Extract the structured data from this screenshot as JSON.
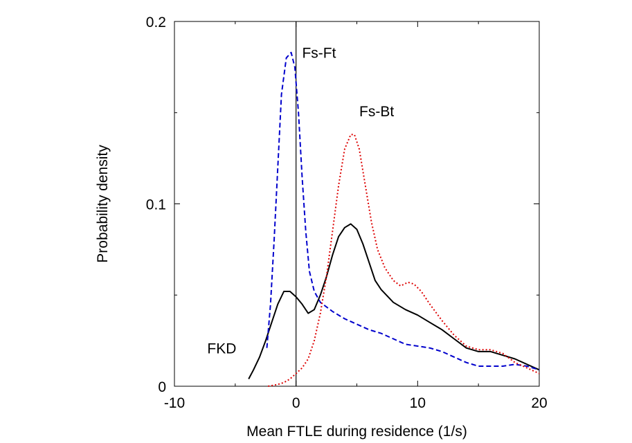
{
  "chart_data": {
    "type": "line",
    "title": "",
    "xlabel": "Mean FTLE during residence (1/s)",
    "ylabel": "Probability density",
    "xlim": [
      -10,
      20
    ],
    "ylim": [
      0,
      0.2
    ],
    "x_ticks": [
      -10,
      0,
      10,
      20
    ],
    "x_tick_labels": [
      "-10",
      "0",
      "10",
      "20"
    ],
    "y_ticks": [
      0,
      0.1,
      0.2
    ],
    "y_tick_labels": [
      "0",
      "0.1",
      "0.2"
    ],
    "minor_y_ticks": [
      0.05,
      0.15
    ],
    "minor_x_ticks": [
      -5,
      5,
      15
    ],
    "vertical_line_x": 0,
    "grid": false,
    "legend": "none",
    "series": [
      {
        "name": "FKD",
        "color": "#000000",
        "dash": "solid",
        "points": [
          [
            -3.9,
            0.004
          ],
          [
            -3.5,
            0.009
          ],
          [
            -3.0,
            0.016
          ],
          [
            -2.5,
            0.025
          ],
          [
            -2.0,
            0.035
          ],
          [
            -1.5,
            0.045
          ],
          [
            -1.0,
            0.052
          ],
          [
            -0.5,
            0.052
          ],
          [
            0.0,
            0.049
          ],
          [
            0.5,
            0.045
          ],
          [
            1.0,
            0.04
          ],
          [
            1.5,
            0.042
          ],
          [
            2.0,
            0.05
          ],
          [
            2.5,
            0.06
          ],
          [
            3.0,
            0.072
          ],
          [
            3.5,
            0.082
          ],
          [
            4.0,
            0.087
          ],
          [
            4.5,
            0.089
          ],
          [
            5.0,
            0.086
          ],
          [
            5.5,
            0.078
          ],
          [
            6.0,
            0.068
          ],
          [
            6.5,
            0.058
          ],
          [
            7.0,
            0.053
          ],
          [
            8.0,
            0.046
          ],
          [
            9.0,
            0.042
          ],
          [
            10.0,
            0.039
          ],
          [
            11.0,
            0.035
          ],
          [
            12.0,
            0.031
          ],
          [
            13.0,
            0.026
          ],
          [
            14.0,
            0.021
          ],
          [
            15.0,
            0.019
          ],
          [
            16.0,
            0.019
          ],
          [
            17.0,
            0.017
          ],
          [
            18.0,
            0.015
          ],
          [
            19.0,
            0.012
          ],
          [
            20.0,
            0.009
          ]
        ]
      },
      {
        "name": "Fs-Ft",
        "color": "#0000cc",
        "dash": "dashed",
        "points": [
          [
            -2.4,
            0.021
          ],
          [
            -2.1,
            0.045
          ],
          [
            -1.8,
            0.08
          ],
          [
            -1.5,
            0.12
          ],
          [
            -1.2,
            0.16
          ],
          [
            -0.8,
            0.18
          ],
          [
            -0.4,
            0.183
          ],
          [
            -0.1,
            0.175
          ],
          [
            0.2,
            0.15
          ],
          [
            0.5,
            0.115
          ],
          [
            0.8,
            0.085
          ],
          [
            1.1,
            0.063
          ],
          [
            1.5,
            0.052
          ],
          [
            2.0,
            0.046
          ],
          [
            3.0,
            0.041
          ],
          [
            4.0,
            0.037
          ],
          [
            5.0,
            0.034
          ],
          [
            6.0,
            0.031
          ],
          [
            7.0,
            0.029
          ],
          [
            8.0,
            0.026
          ],
          [
            9.0,
            0.023
          ],
          [
            10.0,
            0.022
          ],
          [
            11.0,
            0.021
          ],
          [
            12.0,
            0.019
          ],
          [
            13.0,
            0.016
          ],
          [
            14.0,
            0.013
          ],
          [
            15.0,
            0.011
          ],
          [
            16.0,
            0.011
          ],
          [
            17.0,
            0.011
          ],
          [
            18.0,
            0.012
          ],
          [
            19.0,
            0.011
          ],
          [
            20.0,
            0.009
          ]
        ]
      },
      {
        "name": "Fs-Bt",
        "color": "#dd0000",
        "dash": "dotted",
        "points": [
          [
            -2.3,
            0.0
          ],
          [
            -1.5,
            0.001
          ],
          [
            -1.0,
            0.002
          ],
          [
            -0.5,
            0.004
          ],
          [
            0.0,
            0.007
          ],
          [
            0.5,
            0.01
          ],
          [
            1.0,
            0.015
          ],
          [
            1.5,
            0.025
          ],
          [
            2.0,
            0.04
          ],
          [
            2.5,
            0.06
          ],
          [
            3.0,
            0.085
          ],
          [
            3.5,
            0.11
          ],
          [
            4.0,
            0.13
          ],
          [
            4.5,
            0.138
          ],
          [
            4.8,
            0.138
          ],
          [
            5.2,
            0.13
          ],
          [
            5.7,
            0.11
          ],
          [
            6.2,
            0.09
          ],
          [
            6.7,
            0.075
          ],
          [
            7.3,
            0.065
          ],
          [
            8.0,
            0.058
          ],
          [
            8.6,
            0.055
          ],
          [
            9.2,
            0.057
          ],
          [
            9.7,
            0.056
          ],
          [
            10.3,
            0.052
          ],
          [
            11.0,
            0.045
          ],
          [
            12.0,
            0.036
          ],
          [
            13.0,
            0.028
          ],
          [
            14.0,
            0.022
          ],
          [
            15.0,
            0.02
          ],
          [
            16.0,
            0.02
          ],
          [
            17.0,
            0.018
          ],
          [
            18.0,
            0.013
          ],
          [
            19.0,
            0.01
          ],
          [
            20.0,
            0.007
          ]
        ]
      }
    ],
    "annotations": [
      {
        "text": "Fs-Ft",
        "x": 0.5,
        "y": 0.18
      },
      {
        "text": "Fs-Bt",
        "x": 5.2,
        "y": 0.148
      },
      {
        "text": "FKD",
        "x": -7.3,
        "y": 0.018
      }
    ]
  }
}
